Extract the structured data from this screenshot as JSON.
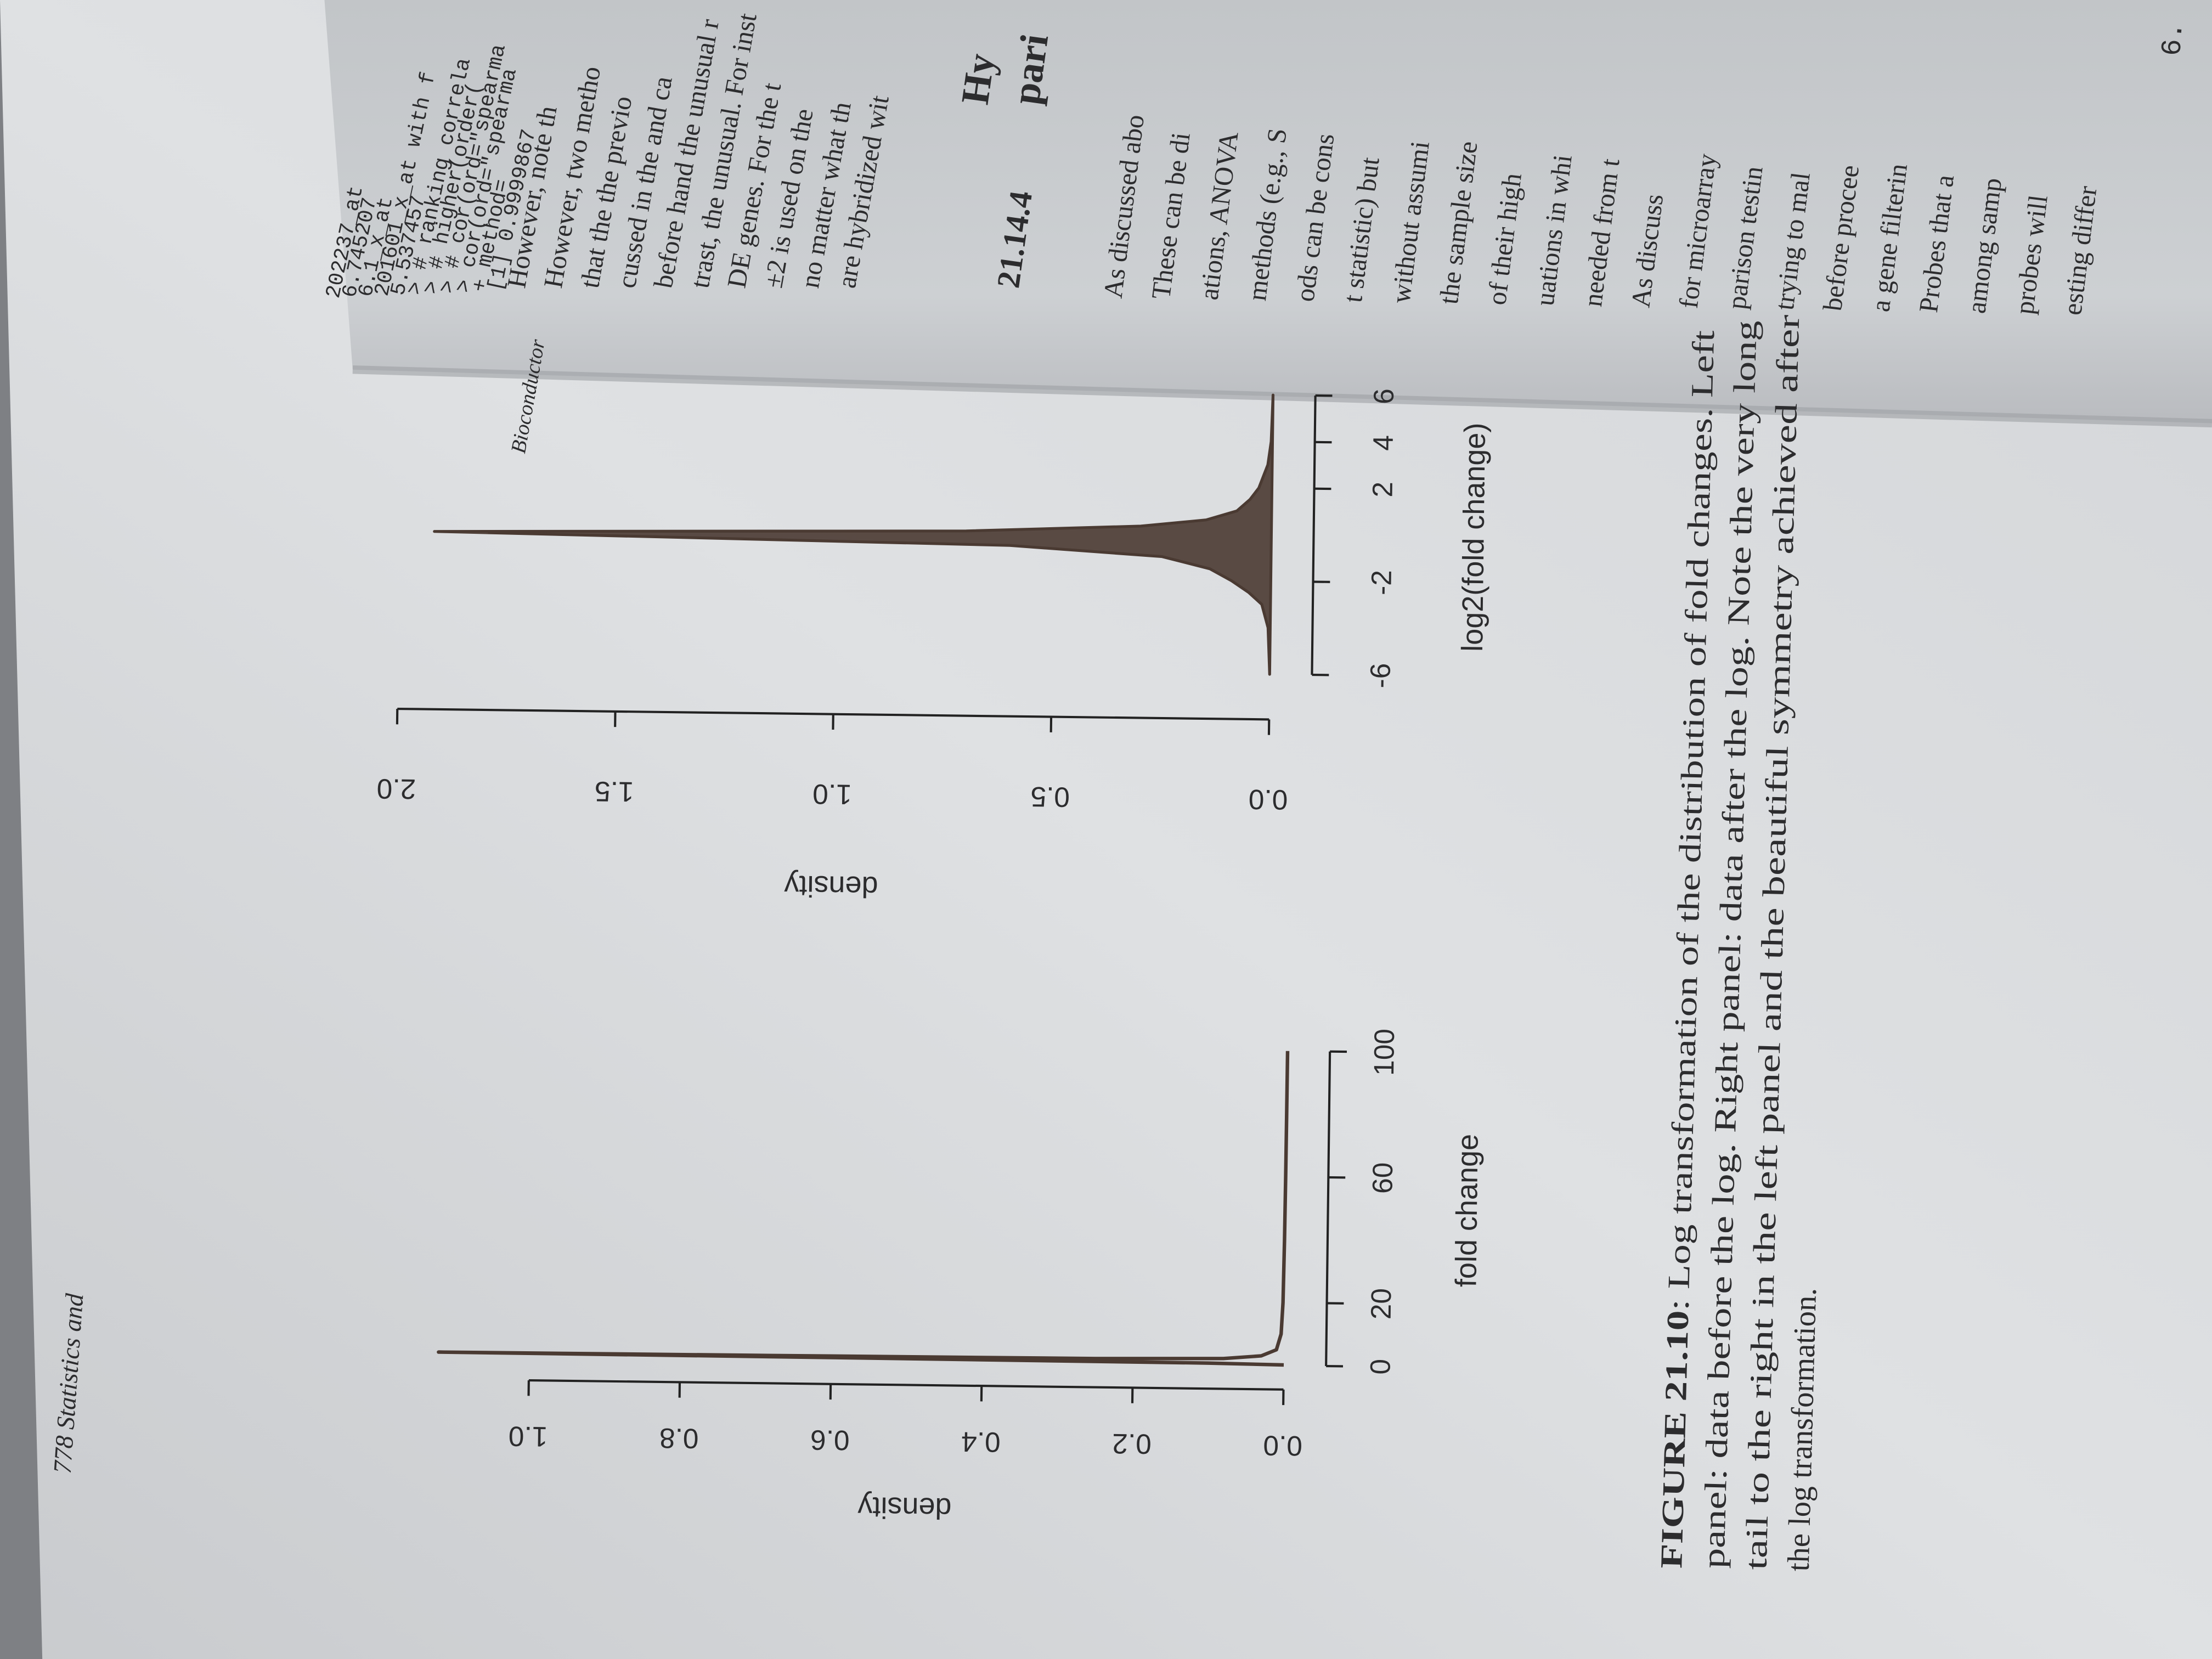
{
  "page_header": "778 Statistics and",
  "chart_data": [
    {
      "type": "line",
      "xlabel": "fold change",
      "ylabel": "density",
      "x": [
        0.2,
        0.5,
        0.8,
        1,
        1.2,
        1.5,
        2,
        3,
        5,
        10,
        20,
        40,
        60,
        80,
        100
      ],
      "values": [
        0,
        0.1,
        0.6,
        1.12,
        0.7,
        0.25,
        0.08,
        0.03,
        0.01,
        0.004,
        0.002,
        0.001,
        0.0005,
        0.0002,
        0
      ],
      "color": "#4a3a32",
      "xlim": [
        0,
        100
      ],
      "ylim": [
        0,
        1
      ],
      "xticks": [
        0,
        20,
        60,
        100
      ],
      "yticks": [
        {
          "value": 0,
          "label": "0.0"
        },
        0.2,
        0.4,
        0.6,
        0.8,
        {
          "value": 1,
          "label": "1.0"
        }
      ]
    },
    {
      "type": "area",
      "xlabel": "log2(fold change)",
      "ylabel": "density",
      "x": [
        -6,
        -4,
        -3,
        -2.5,
        -2,
        -1.5,
        -1,
        -0.6,
        -0.3,
        0,
        0.3,
        0.6,
        1,
        1.5,
        2,
        3,
        4,
        6
      ],
      "values": [
        0,
        0.005,
        0.02,
        0.05,
        0.09,
        0.14,
        0.25,
        0.6,
        1.92,
        0.7,
        0.3,
        0.15,
        0.08,
        0.05,
        0.03,
        0.01,
        0.003,
        0
      ],
      "color": "#4a3a32",
      "xlim": [
        -6,
        6
      ],
      "ylim": [
        0,
        2
      ],
      "xticks": [
        -6,
        -2,
        2,
        4,
        6
      ],
      "yticks": [
        {
          "value": 0,
          "label": "0.0"
        },
        0.5,
        {
          "value": 1,
          "label": "1.0"
        },
        1.5,
        {
          "value": 2,
          "label": "2.0"
        }
      ]
    }
  ],
  "caption": {
    "label": "FIGURE 21.10",
    "lines": [
      ": Log transformation of the distribution of fold changes. Left",
      "panel: data before the log. Right panel: data after the log. Note the very long",
      "tail to the right in the left panel and the beautiful symmetry achieved after",
      "the log transformation."
    ]
  },
  "right_page": {
    "running_head": "Bioconductor",
    "page_number": "6.",
    "code_lines": [
      "202237_at",
      "6.745207",
      "6.1_x_at",
      "201601_x_at with f",
      "5.537457",
      "> # ranking correla",
      "> # higher(order(",
      "> # cor(ord=\"spearma",
      "> cor(ord=\"spearma",
      "+ method=",
      "[1] 0.9999867"
    ],
    "lines_a": [
      "However, note th",
      "However, two metho",
      "that the the previo",
      "cussed in the and ca",
      "before hand the unusual r",
      "trast, the unusual. For inst",
      "DE genes. For the t",
      "±2 is used on the",
      "no matter what th",
      "are hybridized wit"
    ],
    "section_number": "21.14.4",
    "section_title": [
      "Hy",
      "pari"
    ],
    "lines_b": [
      "As discussed abo",
      "These can be di",
      "ations, ANOVA",
      "methods (e.g., S",
      "ods can be cons",
      "t statistic) but",
      "without assumi",
      "the sample size",
      "of their high",
      "uations in whi",
      "needed from t",
      "As discuss",
      "for microarray",
      "parison testin",
      "trying to mal",
      "before procee",
      "a gene filterin",
      "Probes that a",
      "among samp",
      "probes will",
      "esting differ"
    ]
  }
}
